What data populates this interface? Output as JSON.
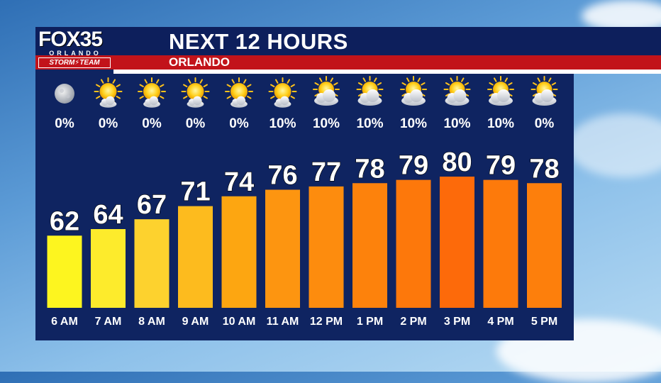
{
  "header": {
    "title": "NEXT 12 HOURS",
    "subtitle": "ORLANDO"
  },
  "logo": {
    "brand": "FOX35",
    "city": "ORLANDO",
    "team": "STORM⚡TEAM"
  },
  "colors": {
    "panel": "#0f2461",
    "header": "#0d1f5c",
    "accent_red": "#c2131a"
  },
  "chart_data": {
    "type": "bar",
    "title": "NEXT 12 HOURS",
    "categories": [
      "6 AM",
      "7 AM",
      "8 AM",
      "9 AM",
      "10 AM",
      "11 AM",
      "12 PM",
      "1 PM",
      "2 PM",
      "3 PM",
      "4 PM",
      "5 PM"
    ],
    "values": [
      62,
      64,
      67,
      71,
      74,
      76,
      77,
      78,
      79,
      80,
      79,
      78
    ],
    "value_labels": [
      "62",
      "64",
      "67",
      "71",
      "74",
      "76",
      "77",
      "78",
      "79",
      "80",
      "79",
      "78"
    ],
    "precip_chance": [
      "0%",
      "0%",
      "0%",
      "0%",
      "0%",
      "10%",
      "10%",
      "10%",
      "10%",
      "10%",
      "10%",
      "0%"
    ],
    "conditions": [
      "moon-icon",
      "sun-icon",
      "sun-icon",
      "sun-icon",
      "sun-icon",
      "sun-icon",
      "partly-cloudy-icon",
      "partly-cloudy-icon",
      "partly-cloudy-icon",
      "partly-cloudy-icon",
      "partly-cloudy-icon",
      "partly-cloudy-icon"
    ],
    "bar_colors": [
      "#fdf51f",
      "#fdeb2c",
      "#fdd22e",
      "#fdbb1e",
      "#fda611",
      "#fd9510",
      "#fd8c0e",
      "#fd820c",
      "#fd780b",
      "#fd6a0a",
      "#fd7a0b",
      "#fd7f0c"
    ],
    "ylim": [
      40,
      80
    ],
    "grid": false,
    "legend": "none"
  }
}
